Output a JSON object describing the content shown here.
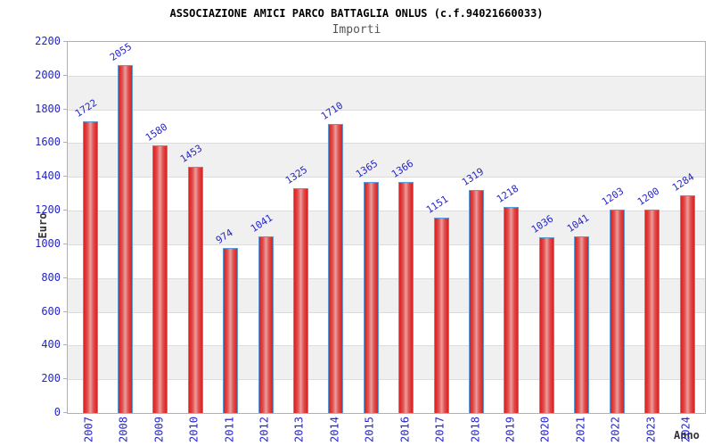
{
  "chart_data": {
    "type": "bar",
    "title": "ASSOCIAZIONE AMICI PARCO BATTAGLIA ONLUS (c.f.94021660033)",
    "subtitle": "Importi",
    "ylabel": "Euro",
    "xlabel": "Anno",
    "categories": [
      "2007",
      "2008",
      "2009",
      "2010",
      "2011",
      "2012",
      "2013",
      "2014",
      "2015",
      "2016",
      "2017",
      "2018",
      "2019",
      "2020",
      "2021",
      "2022",
      "2023",
      "2024"
    ],
    "values": [
      1722,
      2055,
      1580,
      1453,
      974,
      1041,
      1325,
      1710,
      1365,
      1366,
      1151,
      1319,
      1218,
      1036,
      1041,
      1203,
      1200,
      1284
    ],
    "ylim": [
      0,
      2200
    ],
    "ytick_step": 200,
    "grid": true,
    "legend": null,
    "colors": {
      "label_blue": "#2424c8",
      "bar_edge_red": "#d92020",
      "bar_mid_red": "#e15050",
      "bar_center_pink": "#eb9e9e",
      "bar_border_blue": "#5b9bd5",
      "band_gray": "#f0f0f0",
      "gridline_gray": "#dcdcdc",
      "plot_border_gray": "#b0b0b0",
      "title_color": "#000000",
      "subtitle_color": "#555555",
      "axis_title_color": "#333333"
    }
  }
}
